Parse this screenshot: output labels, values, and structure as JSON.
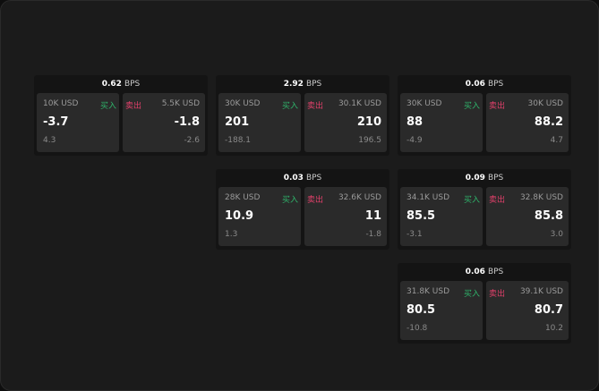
{
  "unit": "BPS",
  "buy_label": "买入",
  "sell_label": "卖出",
  "colors": {
    "buy": "#2fb36a",
    "sell": "#e0406a"
  },
  "cards": [
    {
      "spread": "0.62",
      "buy": {
        "size": "10K USD",
        "price": "-3.7",
        "change": "4.3"
      },
      "sell": {
        "size": "5.5K USD",
        "price": "-1.8",
        "change": "-2.6"
      }
    },
    {
      "spread": "2.92",
      "buy": {
        "size": "30K USD",
        "price": "201",
        "change": "-188.1"
      },
      "sell": {
        "size": "30.1K USD",
        "price": "210",
        "change": "196.5"
      }
    },
    {
      "spread": "0.06",
      "buy": {
        "size": "30K USD",
        "price": "88",
        "change": "-4.9"
      },
      "sell": {
        "size": "30K USD",
        "price": "88.2",
        "change": "4.7"
      }
    },
    {
      "spread": "0.03",
      "buy": {
        "size": "28K USD",
        "price": "10.9",
        "change": "1.3"
      },
      "sell": {
        "size": "32.6K USD",
        "price": "11",
        "change": "-1.8"
      }
    },
    {
      "spread": "0.09",
      "buy": {
        "size": "34.1K USD",
        "price": "85.5",
        "change": "-3.1"
      },
      "sell": {
        "size": "32.8K USD",
        "price": "85.8",
        "change": "3.0"
      }
    },
    {
      "spread": "0.06",
      "buy": {
        "size": "31.8K USD",
        "price": "80.5",
        "change": "-10.8"
      },
      "sell": {
        "size": "39.1K USD",
        "price": "80.7",
        "change": "10.2"
      }
    }
  ]
}
